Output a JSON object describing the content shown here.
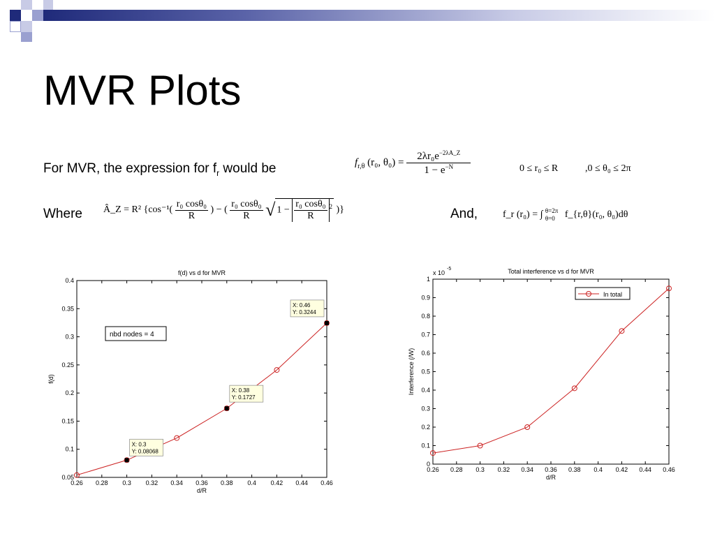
{
  "slide": {
    "title": "MVR Plots",
    "line1": {
      "prefix": "For MVR, the expression for f",
      "sub": "r",
      "suffix": " would be"
    },
    "where_label": "Where",
    "and_label": "And,"
  },
  "equations": {
    "f_def": {
      "lhs_f": "f",
      "lhs_sub": "r,θ",
      "lhs_args": "(r₀, θ₀) =",
      "num": "2λr₀e",
      "num_exp": "−2λA_Z",
      "den": "1 − e",
      "den_exp": "−N"
    },
    "range1": "0 ≤ r₀ ≤ R",
    "range2": ",0 ≤ θ₀ ≤ 2π",
    "az_def": {
      "lhs": "Â_Z = R² {cos⁻¹(",
      "frac_num": "r₀ cosθ₀",
      "frac_den": "R",
      "mid": ") − (",
      "sqrt_prefix": "1 −",
      "exp": "2",
      "tail": ")}"
    },
    "fr_def": {
      "lhs": "f_r (r₀) = ∫",
      "upper": "θ=2π",
      "lower": "θ=0",
      "rhs": "f_{r,θ}(r₀, θ₀)dθ"
    }
  },
  "colors": {
    "series": "#cc2222",
    "axis": "#000000",
    "gridbox": "#000000",
    "logo_dark": "#1f2a7a",
    "logo_light": "#9aa0d0"
  },
  "chart_data": [
    {
      "type": "line",
      "title": "f(d) vs d for MVR",
      "xlabel": "d/R",
      "ylabel": "f(d)",
      "xlim": [
        0.26,
        0.46
      ],
      "ylim": [
        0.05,
        0.4
      ],
      "xticks": [
        "0.26",
        "0.28",
        "0.3",
        "0.32",
        "0.34",
        "0.36",
        "0.38",
        "0.4",
        "0.42",
        "0.44",
        "0.46"
      ],
      "yticks": [
        "0.05",
        "0.1",
        "0.15",
        "0.2",
        "0.25",
        "0.3",
        "0.35",
        "0.4"
      ],
      "x": [
        0.26,
        0.3,
        0.34,
        0.38,
        0.42,
        0.46
      ],
      "y": [
        0.054,
        0.08068,
        0.12,
        0.1727,
        0.241,
        0.3244
      ],
      "annotation_box": "nbd nodes = 4",
      "datatips": [
        {
          "x": 0.3,
          "y": 0.08068,
          "line1": "X: 0.3",
          "line2": "Y: 0.08068"
        },
        {
          "x": 0.38,
          "y": 0.1727,
          "line1": "X: 0.38",
          "line2": "Y: 0.1727"
        },
        {
          "x": 0.46,
          "y": 0.3244,
          "line1": "X: 0.46",
          "line2": "Y: 0.3244"
        }
      ]
    },
    {
      "type": "line",
      "title": "Total interference vs d for MVR",
      "xlabel": "d/R",
      "ylabel": "Interference (/W)",
      "scale_label": "x 10",
      "scale_exp": "-5",
      "xlim": [
        0.26,
        0.46
      ],
      "ylim": [
        0,
        1
      ],
      "xticks": [
        "0.26",
        "0.28",
        "0.3",
        "0.32",
        "0.34",
        "0.36",
        "0.38",
        "0.4",
        "0.42",
        "0.44",
        "0.46"
      ],
      "yticks": [
        "0",
        "0.1",
        "0.2",
        "0.3",
        "0.4",
        "0.5",
        "0.6",
        "0.7",
        "0.8",
        "0.9",
        "1"
      ],
      "legend": "In total",
      "legend_placement": "top-right",
      "x": [
        0.26,
        0.3,
        0.34,
        0.38,
        0.42,
        0.46
      ],
      "y": [
        0.06,
        0.1,
        0.2,
        0.41,
        0.72,
        0.95
      ]
    }
  ]
}
